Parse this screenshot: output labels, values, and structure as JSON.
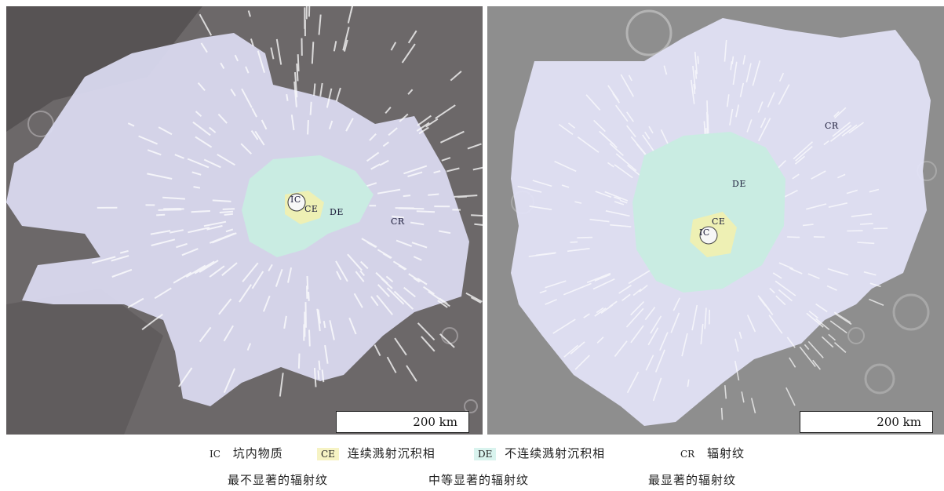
{
  "panels": [
    {
      "id": "left",
      "units": {
        "ic": "IC",
        "ce": "CE",
        "de": "DE",
        "cr": "CR"
      },
      "scale_label": "200 km"
    },
    {
      "id": "right",
      "units": {
        "ic": "IC",
        "ce": "CE",
        "de": "DE",
        "cr": "CR"
      },
      "scale_label": "200 km"
    }
  ],
  "legend": {
    "row1": [
      {
        "code": "IC",
        "label": "坑内物质"
      },
      {
        "code": "CE",
        "label": "连续溅射沉积相"
      },
      {
        "code": "DE",
        "label": "不连续溅射沉积相"
      },
      {
        "code": "CR",
        "label": "辐射纹"
      }
    ],
    "row2": [
      {
        "label": "最不显著的辐射纹"
      },
      {
        "label": "中等显著的辐射纹"
      },
      {
        "label": "最显著的辐射纹"
      }
    ]
  },
  "colors": {
    "CR": "#dcdcf2",
    "DE": "#c9ece2",
    "CE": "#eef0b4",
    "IC": "#f7f7f7",
    "ray": "#ffffff",
    "terrain_left": "#6e6a6c",
    "terrain_right": "#8c8c8c"
  }
}
